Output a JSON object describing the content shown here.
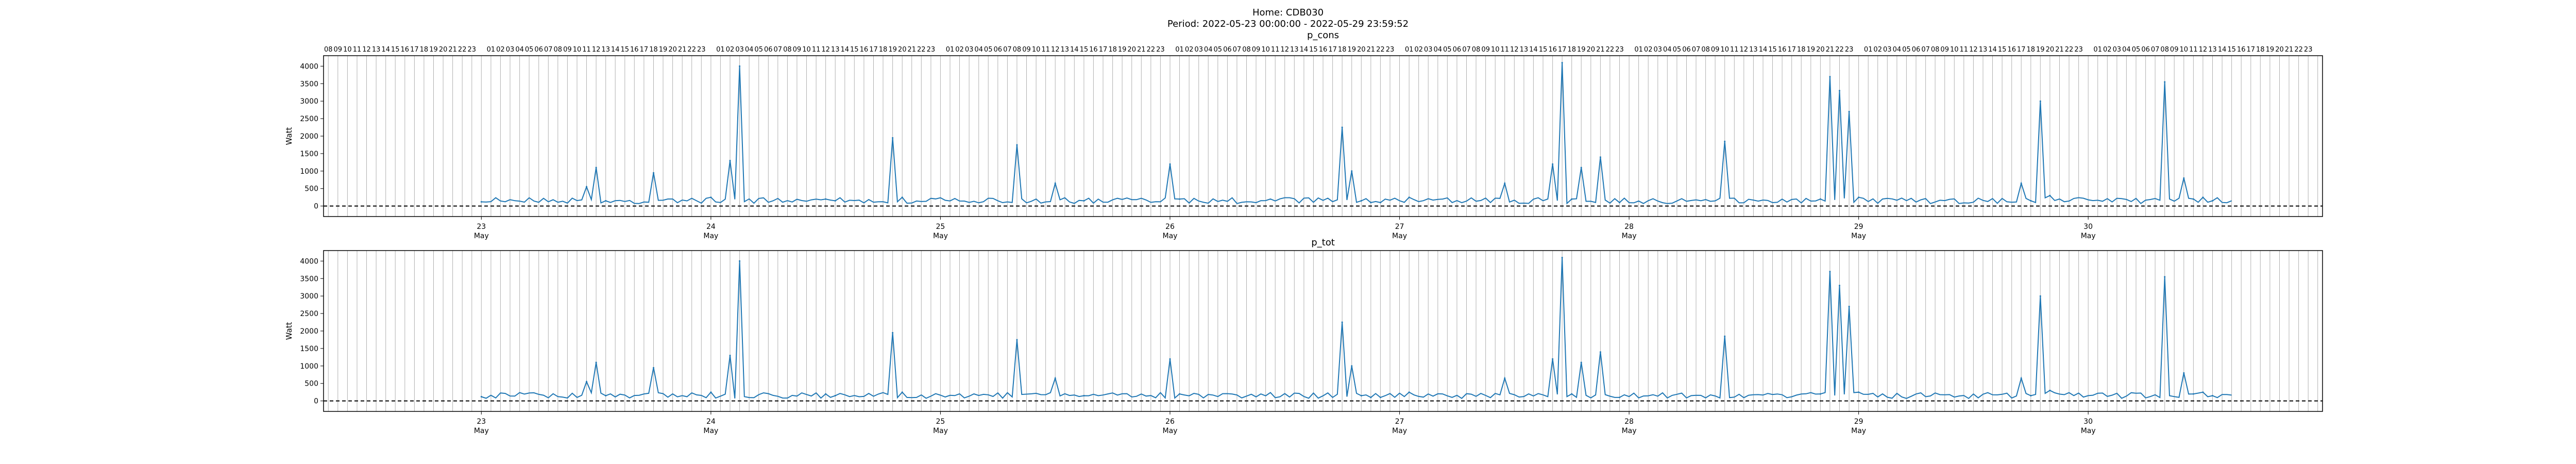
{
  "figure": {
    "title_line1": "Home: CDB030",
    "title_line2": "Period: 2022-05-23 00:00:00 - 2022-05-29 23:59:52"
  },
  "colors": {
    "line": "#1f77b4",
    "zero_line": "#000000",
    "grid": "#b0b0b0"
  },
  "chart_data": [
    {
      "type": "line",
      "title": "p_cons",
      "ylabel": "Watt",
      "xlabel": "",
      "ylim": [
        -300,
        4300
      ],
      "xlim_hours": [
        -16.5,
        192.5
      ],
      "yticks": [
        0,
        500,
        1000,
        1500,
        2000,
        2500,
        3000,
        3500,
        4000
      ],
      "grid": "vertical hourly",
      "top_ticks": "hours of day 16 ... 23, 01 ... 23 repeating, ... 01 ... 08",
      "day_ticks": [
        {
          "label": "23",
          "sub": "May"
        },
        {
          "label": "24",
          "sub": "May"
        },
        {
          "label": "25",
          "sub": "May"
        },
        {
          "label": "26",
          "sub": "May"
        },
        {
          "label": "27",
          "sub": "May"
        },
        {
          "label": "28",
          "sub": "May"
        },
        {
          "label": "29",
          "sub": "May"
        },
        {
          "label": "30",
          "sub": "May"
        }
      ],
      "reference_line": {
        "y": 0,
        "style": "dashed"
      },
      "series": [
        {
          "x_unit": "hours since 2022-05-23 00:00",
          "x": [
            0,
            11,
            12,
            13,
            18,
            24,
            26,
            27,
            36,
            37,
            43,
            44,
            56,
            60,
            63,
            72,
            73,
            90,
            91,
            92,
            93,
            94,
            97,
            107,
            112,
            113,
            114,
            115,
            117,
            119,
            130,
            140,
            141,
            142,
            143,
            144,
            161,
            162,
            163,
            164,
            176,
            178,
            179,
            180,
            181
          ],
          "y": [
            120,
            550,
            1100,
            150,
            950,
            250,
            1300,
            4000,
            200,
            150,
            1950,
            250,
            1750,
            650,
            150,
            1200,
            200,
            2250,
            1000,
            150,
            100,
            100,
            250,
            650,
            1200,
            4100,
            200,
            1100,
            1400,
            100,
            1850,
            200,
            3700,
            3300,
            2700,
            250,
            650,
            150,
            3000,
            300,
            3550,
            800,
            200,
            250,
            150
          ]
        }
      ]
    },
    {
      "type": "line",
      "title": "p_tot",
      "ylabel": "Watt",
      "xlabel": "",
      "ylim": [
        -300,
        4300
      ],
      "xlim_hours": [
        -16.5,
        192.5
      ],
      "yticks": [
        0,
        500,
        1000,
        1500,
        2000,
        2500,
        3000,
        3500,
        4000
      ],
      "grid": "vertical hourly",
      "day_ticks": [
        {
          "label": "23",
          "sub": "May"
        },
        {
          "label": "24",
          "sub": "May"
        },
        {
          "label": "25",
          "sub": "May"
        },
        {
          "label": "26",
          "sub": "May"
        },
        {
          "label": "27",
          "sub": "May"
        },
        {
          "label": "28",
          "sub": "May"
        },
        {
          "label": "29",
          "sub": "May"
        },
        {
          "label": "30",
          "sub": "May"
        }
      ],
      "reference_line": {
        "y": 0,
        "style": "dashed"
      },
      "series": [
        {
          "x_unit": "hours since 2022-05-23 00:00",
          "x": [
            0,
            11,
            12,
            13,
            18,
            24,
            26,
            27,
            36,
            37,
            43,
            44,
            56,
            60,
            63,
            72,
            73,
            90,
            91,
            92,
            93,
            94,
            97,
            107,
            112,
            113,
            114,
            115,
            117,
            119,
            130,
            140,
            141,
            142,
            143,
            144,
            161,
            162,
            163,
            164,
            176,
            178,
            179,
            180,
            181
          ],
          "y": [
            120,
            550,
            1100,
            150,
            950,
            250,
            1300,
            4000,
            200,
            150,
            1950,
            250,
            1750,
            650,
            150,
            1200,
            200,
            2250,
            1000,
            150,
            100,
            100,
            250,
            650,
            1200,
            4100,
            200,
            1100,
            1400,
            100,
            1850,
            200,
            3700,
            3300,
            2700,
            250,
            650,
            150,
            3000,
            300,
            3550,
            800,
            200,
            250,
            150
          ]
        }
      ]
    }
  ]
}
